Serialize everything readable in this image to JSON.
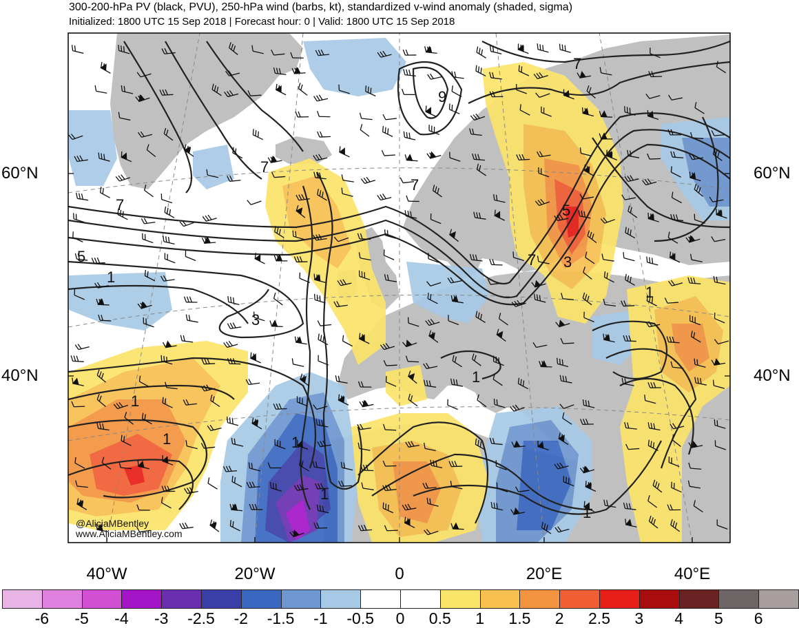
{
  "header": {
    "title": "300-200-hPa PV (black, PVU), 250-hPa wind (barbs, kt), standardized v-wind anomaly (shaded, sigma)",
    "subtitle": "Initialized: 1800 UTC 15 Sep 2018 | Forecast hour: 0 | Valid: 1800 UTC 15 Sep 2018"
  },
  "map": {
    "latitude_labels": [
      "60°N",
      "40°N"
    ],
    "longitude_labels": [
      "40°W",
      "20°W",
      "0",
      "20°E",
      "40°E"
    ],
    "contour_labels": [
      "1",
      "3",
      "5",
      "7",
      "9"
    ],
    "credits": [
      "@AliciaMBentley",
      "www.AliciaMBentley.com"
    ],
    "colors": {
      "land": "#c0c0c0",
      "ocean": "#ffffff",
      "contour": "#222222"
    }
  },
  "colorbar": {
    "labels": [
      "-6",
      "-5",
      "-4",
      "-3",
      "-2.5",
      "-2",
      "-1.5",
      "-1",
      "-0.5",
      "0",
      "0.5",
      "1",
      "1.5",
      "2",
      "2.5",
      "3",
      "4",
      "5",
      "6"
    ],
    "colors": [
      "#e8b4e6",
      "#e081e0",
      "#d24fd4",
      "#a515c8",
      "#6a2fb0",
      "#3a3fa8",
      "#3a68c0",
      "#6e96d0",
      "#a8c9e6",
      "#ffffff",
      "#ffffff",
      "#fbe46a",
      "#f8c050",
      "#f49440",
      "#f05e34",
      "#e81e18",
      "#a80c0c",
      "#6a2222",
      "#6e6566",
      "#a89e9e"
    ]
  }
}
